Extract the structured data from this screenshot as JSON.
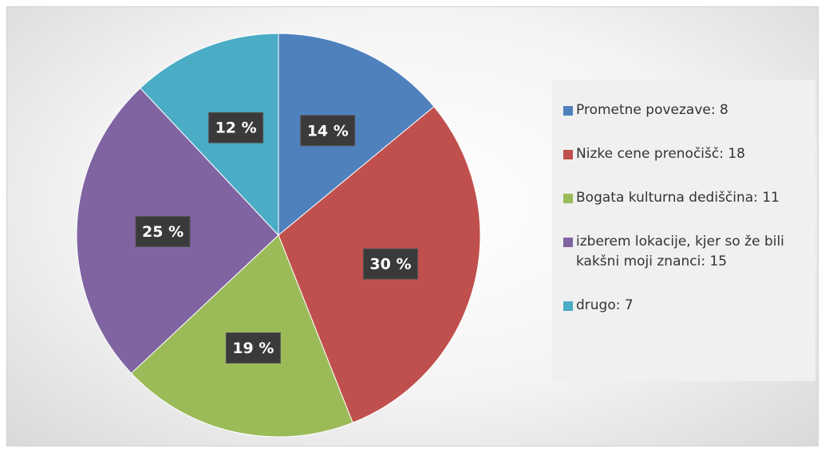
{
  "chart_data": {
    "type": "pie",
    "categories": [
      "Prometne povezave: 8",
      "Nizke cene prenočišč: 18",
      "Bogata kulturna dediščina: 11",
      "izberem lokacije, kjer so že bili kakšni moji znanci: 15",
      "drugo: 7"
    ],
    "values": [
      14,
      30,
      19,
      25,
      12
    ],
    "value_labels": [
      "14 %",
      "30 %",
      "19 %",
      "25 %",
      "12 %"
    ],
    "colors": [
      "#4f81bd",
      "#c0504d",
      "#9bbb59",
      "#8064a2",
      "#4bacc6"
    ],
    "legend": "right"
  }
}
